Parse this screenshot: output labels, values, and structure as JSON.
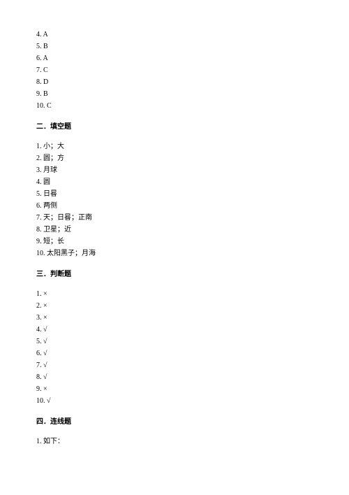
{
  "answers_top": [
    {
      "num": "4",
      "val": "A"
    },
    {
      "num": "5",
      "val": "B"
    },
    {
      "num": "6",
      "val": "A"
    },
    {
      "num": "7",
      "val": "C"
    },
    {
      "num": "8",
      "val": "D"
    },
    {
      "num": "9",
      "val": "B"
    },
    {
      "num": "10",
      "val": "C"
    }
  ],
  "section2": {
    "title": "二．填空题",
    "items": [
      "1. 小；大",
      "2. 圆；方",
      "3. 月球",
      "4. 圆",
      "5. 日晷",
      "6. 两侧",
      "7. 天；日晷；正南",
      "8. 卫星；近",
      "9. 短；长",
      "10. 太阳黑子；月海"
    ]
  },
  "section3": {
    "title": "三．判断题",
    "items": [
      "1. ×",
      "2. ×",
      "3. ×",
      "4. √",
      "5. √",
      "6. √",
      "7. √",
      "8. √",
      "9. ×",
      "10. √"
    ]
  },
  "section4": {
    "title": "四．连线题",
    "items": [
      "1. 如下："
    ]
  }
}
